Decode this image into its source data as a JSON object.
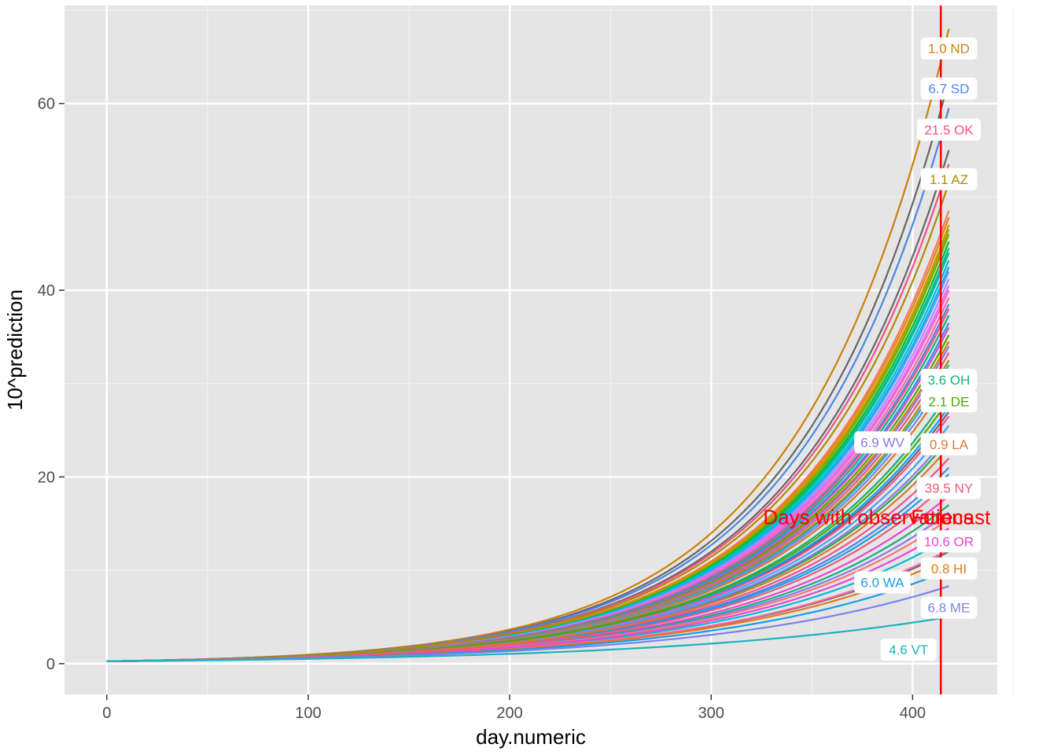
{
  "chart_data": {
    "type": "line",
    "xlabel": "day.numeric",
    "ylabel": "10^prediction",
    "xlim": [
      -21,
      442
    ],
    "ylim": [
      -3.3,
      70.5
    ],
    "x_ticks": [
      0,
      100,
      200,
      300,
      400
    ],
    "x_tick_labels": [
      "0",
      "100",
      "200",
      "300",
      "400"
    ],
    "y_ticks": [
      0,
      20,
      40,
      60
    ],
    "y_tick_labels": [
      "0",
      "20",
      "40",
      "60"
    ],
    "grid": true,
    "legend": "none",
    "x_start": 0,
    "x_end": 418,
    "vline_x": 414,
    "vline_color": "#ff0000",
    "annotations": [
      {
        "text": "Days with observations",
        "x": 378,
        "y": 15.7
      },
      {
        "text": "Forecast",
        "x": 414,
        "y": 15.7
      }
    ],
    "labeled_series": [
      {
        "label": "1.0 ND",
        "end_y": 68,
        "label_y": 65.9,
        "color": "#CD7F0A"
      },
      {
        "label": "6.7 SD",
        "end_y": 59.5,
        "label_y": 61.6,
        "color": "#4A86E8"
      },
      {
        "label": "21.5 OK",
        "end_y": 53.5,
        "label_y": 57.2,
        "color": "#F2508C"
      },
      {
        "label": "1.1 AZ",
        "end_y": 51.5,
        "label_y": 51.9,
        "color": "#B08A00"
      },
      {
        "label": "3.6 OH",
        "end_y": 29.0,
        "label_y": 30.4,
        "color": "#16B07A"
      },
      {
        "label": "2.1 DE",
        "end_y": 28.3,
        "label_y": 28.1,
        "color": "#4EA800"
      },
      {
        "label": "6.9 WV",
        "end_y": 24.5,
        "label_y": 23.7,
        "color": "#8D76EE"
      },
      {
        "label": "0.9 LA",
        "end_y": 23.2,
        "label_y": 23.5,
        "color": "#D7792A"
      },
      {
        "label": "39.5 NY",
        "end_y": 19.5,
        "label_y": 18.8,
        "color": "#EC5B78"
      },
      {
        "label": "10.6 OR",
        "end_y": 14.5,
        "label_y": 13.1,
        "color": "#E646D4"
      },
      {
        "label": "0.8 HI",
        "end_y": 11.3,
        "label_y": 10.2,
        "color": "#E07A1A"
      },
      {
        "label": "6.0 WA",
        "end_y": 10.0,
        "label_y": 8.7,
        "color": "#1A9CE8"
      },
      {
        "label": "6.8 ME",
        "end_y": 8.3,
        "label_y": 6.0,
        "color": "#7C83EC"
      },
      {
        "label": "4.6 VT",
        "end_y": 5.0,
        "label_y": 1.5,
        "color": "#1CB3BC"
      }
    ],
    "other_series_end_values": [
      48.5,
      47.8,
      47.0,
      46.5,
      46.0,
      45.2,
      44.5,
      44.0,
      43.2,
      42.5,
      42.0,
      41.2,
      40.5,
      40.0,
      39.2,
      38.5,
      38.0,
      37.3,
      36.5,
      36.0,
      35.2,
      34.5,
      34.0,
      33.3,
      32.5,
      32.0,
      31.3,
      30.5,
      27.5,
      26.5,
      25.5,
      24.0,
      22.0,
      21.0,
      20.3,
      18.0,
      17.0,
      16.2,
      15.5,
      13.5,
      12.2
    ],
    "other_series_colors": [
      "#F8766D",
      "#E58700",
      "#C99800",
      "#A3A500",
      "#6BB100",
      "#00BA38",
      "#00BF7D",
      "#00C0AF",
      "#00BCD8",
      "#00B0F6",
      "#619CFF",
      "#B983FF",
      "#E76BF3",
      "#FD61D1",
      "#FF67A4",
      "#4A86E8",
      "#F2508C",
      "#16B07A",
      "#1A9CE8",
      "#E646D4",
      "#4EA800",
      "#CD7F0A",
      "#8D76EE",
      "#EC5B78",
      "#B08A00",
      "#1CB3BC",
      "#7C83EC",
      "#D7792A",
      "#00A9FF",
      "#FF4FA0",
      "#3FA7F0",
      "#28A745",
      "#F2508C",
      "#4A86E8",
      "#1A9CE8",
      "#E646D4",
      "#16B07A",
      "#8D76EE",
      "#F8766D",
      "#00BCD8",
      "#FF67A4"
    ],
    "gray_series_end_values": [
      62.5,
      55.0,
      27.0,
      12.0
    ],
    "gray_series_color": "#666666"
  }
}
